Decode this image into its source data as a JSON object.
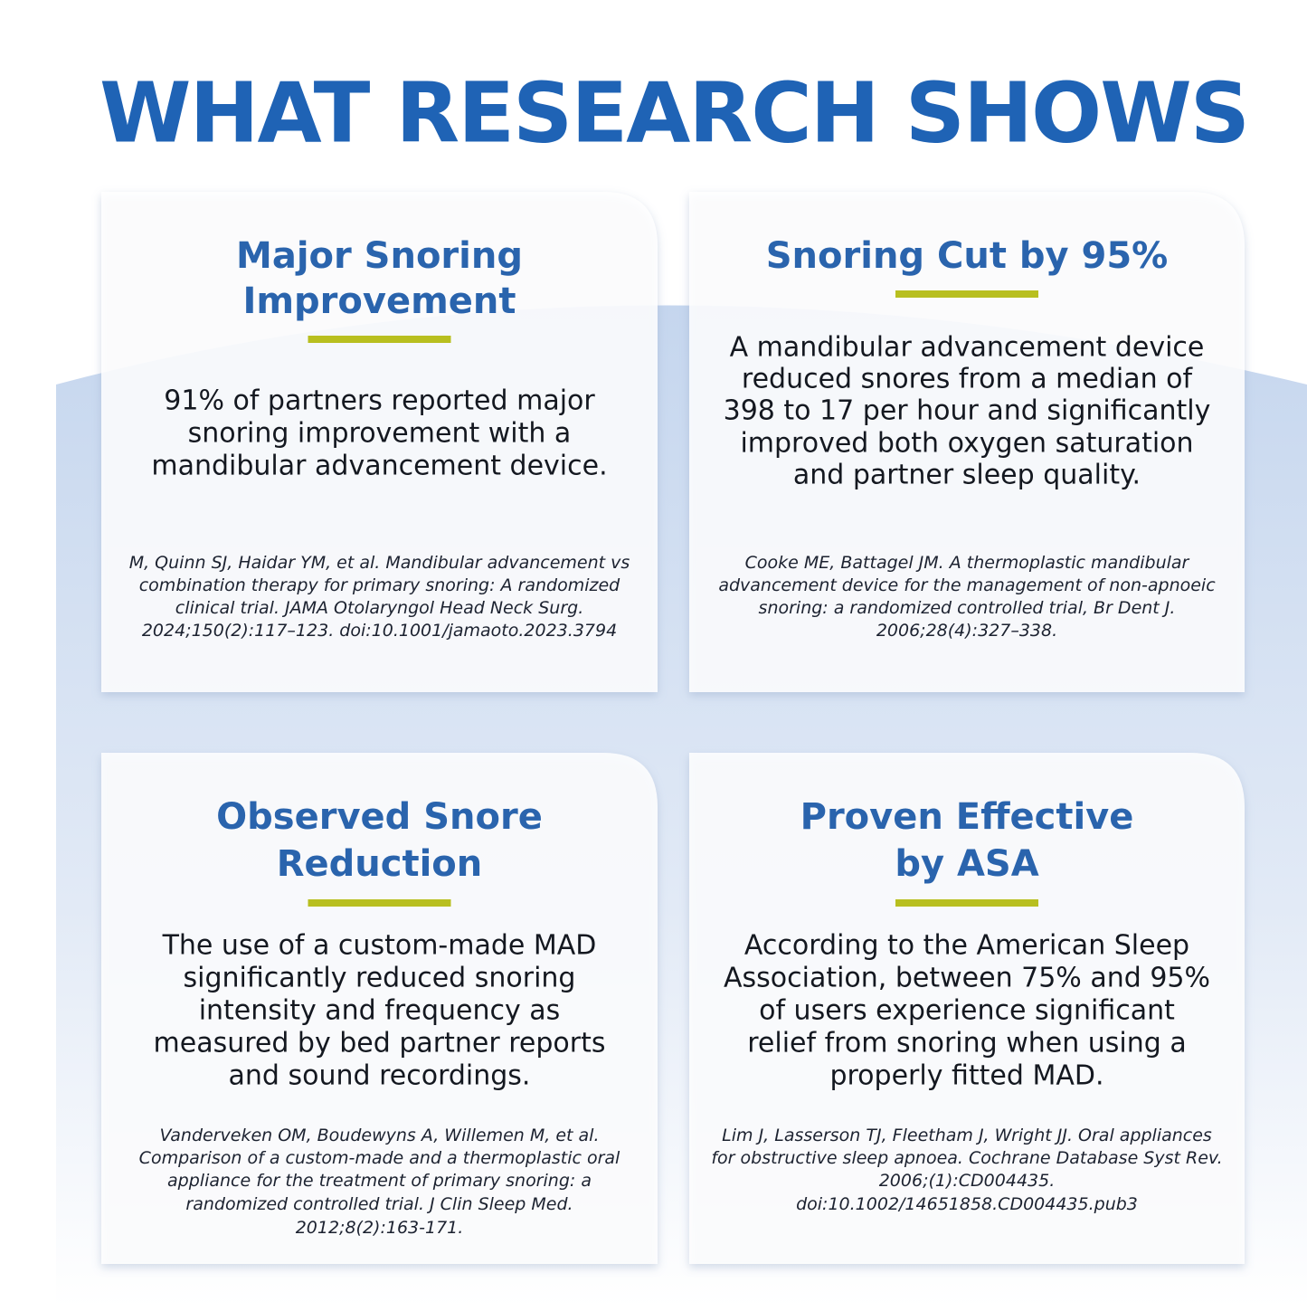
{
  "title": "WHAT RESEARCH SHOWS",
  "cards": [
    {
      "heading": [
        "Major Snoring",
        "Improvement"
      ],
      "body": [
        "91% of partners reported major",
        "snoring improvement with a",
        "mandibular advancement device."
      ],
      "citation": [
        "M, Quinn SJ, Haidar YM, et al. Mandibular advancement vs",
        "combination therapy for primary snoring: A randomized",
        "clinical trial. JAMA Otolaryngol Head Neck Surg.",
        "2024;150(2):117–123. doi:10.1001/jamaoto.2023.3794"
      ]
    },
    {
      "heading": [
        "Snoring Cut by 95%"
      ],
      "body": [
        "A mandibular advancement device",
        "reduced snores from a median of",
        "398 to 17 per hour and significantly",
        "improved both oxygen saturation",
        "and partner sleep quality."
      ],
      "citation": [
        "Cooke ME, Battagel JM. A thermoplastic mandibular",
        "advancement device for the management of non-apnoeic",
        "snoring: a randomized controlled trial, Br Dent J.",
        "2006;28(4):327–338."
      ]
    },
    {
      "heading": [
        "Observed Snore",
        "Reduction"
      ],
      "body": [
        "The use of a custom-made MAD",
        "significantly reduced snoring",
        "intensity and frequency as",
        "measured by bed partner reports",
        "and sound recordings."
      ],
      "citation": [
        "Vanderveken OM, Boudewyns A, Willemen M, et al.",
        "Comparison of a custom-made and a thermoplastic oral",
        "appliance for the treatment of primary snoring: a",
        "randomized controlled trial. J Clin Sleep Med.",
        "2012;8(2):163-171."
      ]
    },
    {
      "heading": [
        "Proven Effective",
        "by ASA"
      ],
      "body": [
        "According to the American Sleep",
        "Association, between 75% and 95%",
        "of users experience significant",
        "relief from snoring when using a",
        "properly fitted MAD."
      ],
      "citation": [
        "Lim J, Lasserson TJ, Fleetham J, Wright JJ. Oral appliances",
        "for obstructive sleep apnoea. Cochrane Database Syst Rev.",
        "2006;(1):CD004435.",
        "doi:10.1002/14651858.CD004435.pub3"
      ]
    }
  ]
}
